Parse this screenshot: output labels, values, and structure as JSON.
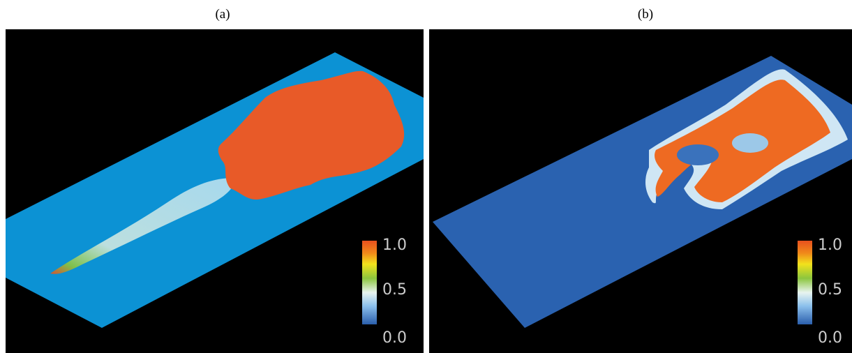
{
  "panels": [
    {
      "label": "(a)",
      "colorbar": {
        "ticks": [
          "1.0",
          "0.5",
          "0.0"
        ]
      }
    },
    {
      "label": "(b)",
      "colorbar": {
        "ticks": [
          "1.0",
          "0.5",
          "0.0"
        ]
      }
    }
  ]
}
